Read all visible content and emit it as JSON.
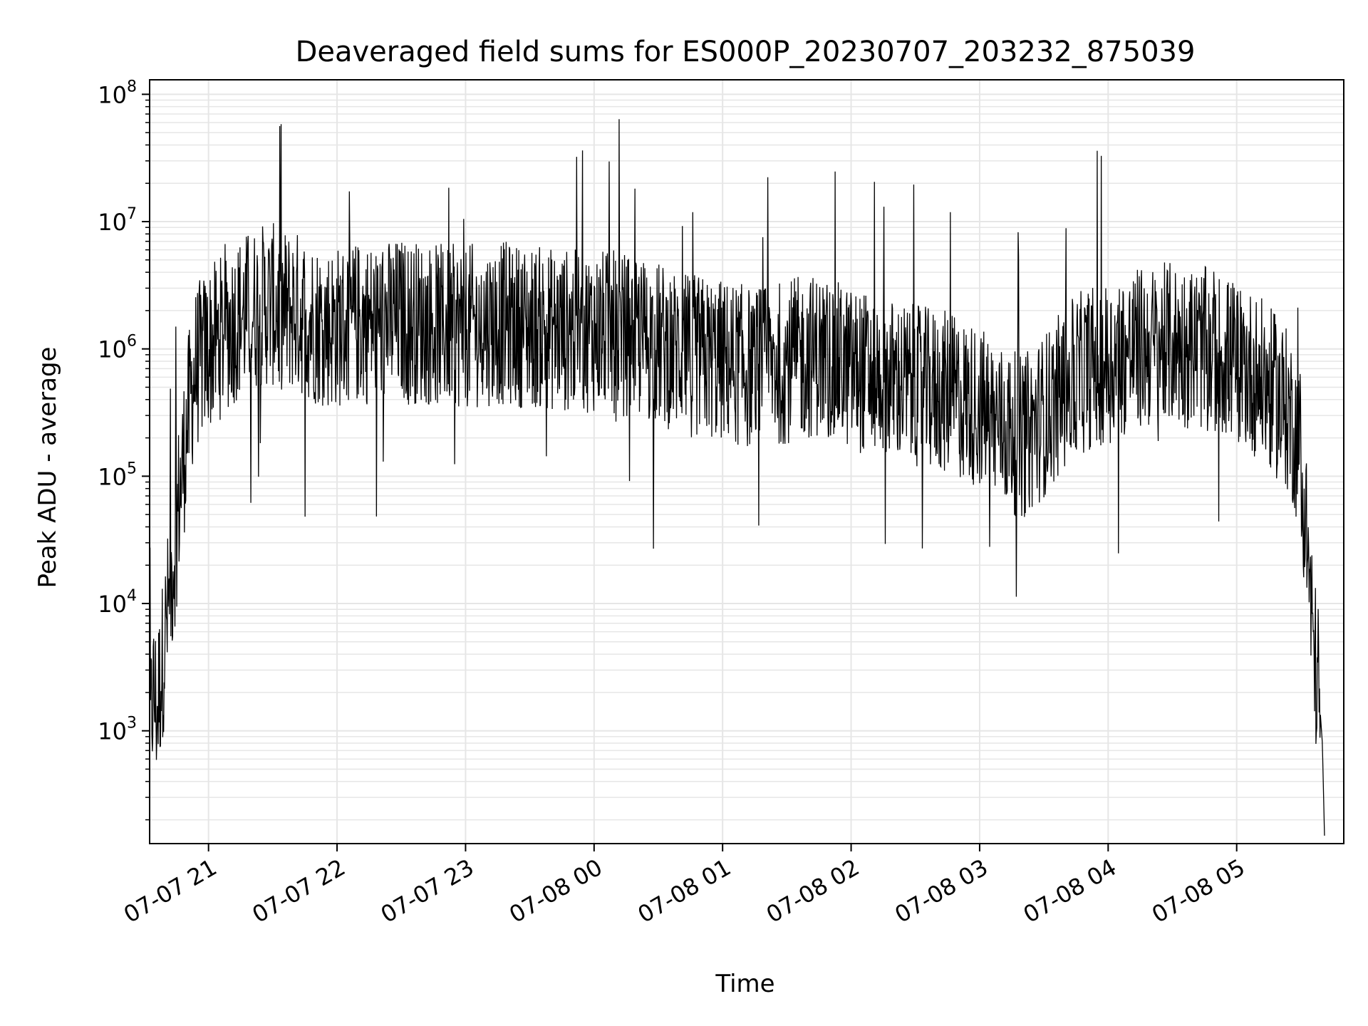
{
  "chart_data": {
    "type": "line",
    "title": "Deaveraged field sums for ES000P_20230707_203232_875039",
    "xlabel": "Time",
    "ylabel": "Peak ADU - average",
    "y_scale": "log",
    "ylim": [
      130,
      130000000
    ],
    "xlim": [
      "07-07 20:32:30",
      "07-08 05:50:00"
    ],
    "grid": true,
    "line_color": "#000000",
    "grid_color": "#e6e6e6",
    "x_ticks": [
      {
        "label": "07-07 21",
        "time": "07-07 21:00"
      },
      {
        "label": "07-07 22",
        "time": "07-07 22:00"
      },
      {
        "label": "07-07 23",
        "time": "07-07 23:00"
      },
      {
        "label": "07-08 00",
        "time": "07-08 00:00"
      },
      {
        "label": "07-08 01",
        "time": "07-08 01:00"
      },
      {
        "label": "07-08 02",
        "time": "07-08 02:00"
      },
      {
        "label": "07-08 03",
        "time": "07-08 03:00"
      },
      {
        "label": "07-08 04",
        "time": "07-08 04:00"
      },
      {
        "label": "07-08 05",
        "time": "07-08 05:00"
      }
    ],
    "y_ticks": [
      {
        "base": "10",
        "exp": "3",
        "value": 1000
      },
      {
        "base": "10",
        "exp": "4",
        "value": 10000
      },
      {
        "base": "10",
        "exp": "5",
        "value": 100000
      },
      {
        "base": "10",
        "exp": "6",
        "value": 1000000
      },
      {
        "base": "10",
        "exp": "7",
        "value": 10000000
      },
      {
        "base": "10",
        "exp": "8",
        "value": 100000000
      }
    ],
    "series": [
      {
        "x": [
          "07-07 20:32:30",
          "07-07 20:34",
          "07-07 20:36",
          "07-07 20:38",
          "07-07 20:40",
          "07-07 20:42",
          "07-07 20:44",
          "07-07 20:46",
          "07-07 20:48",
          "07-07 20:50",
          "07-07 20:52",
          "07-07 20:54",
          "07-07 20:56",
          "07-07 20:58",
          "07-07 21:00",
          "07-07 21:05",
          "07-07 21:10",
          "07-07 21:15",
          "07-07 21:20",
          "07-07 21:25",
          "07-07 21:30",
          "07-07 21:35",
          "07-07 21:40",
          "07-07 21:45",
          "07-07 21:50",
          "07-07 21:55",
          "07-07 22:00",
          "07-07 22:10",
          "07-07 22:20",
          "07-07 22:30",
          "07-07 22:40",
          "07-07 22:50",
          "07-07 23:00",
          "07-07 23:15",
          "07-07 23:30",
          "07-07 23:45",
          "07-08 00:00",
          "07-08 00:15",
          "07-08 00:30",
          "07-08 00:45",
          "07-08 01:00",
          "07-08 01:15",
          "07-08 01:30",
          "07-08 01:45",
          "07-08 02:00",
          "07-08 02:15",
          "07-08 02:30",
          "07-08 02:45",
          "07-08 03:00",
          "07-08 03:10",
          "07-08 03:20",
          "07-08 03:30",
          "07-08 03:40",
          "07-08 03:50",
          "07-08 04:00",
          "07-08 04:15",
          "07-08 04:30",
          "07-08 04:45",
          "07-08 05:00",
          "07-08 05:10",
          "07-08 05:20",
          "07-08 05:25",
          "07-08 05:30",
          "07-08 05:33",
          "07-08 05:36",
          "07-08 05:38",
          "07-08 05:40",
          "07-08 05:41"
        ],
        "y": [
          800,
          2000,
          1500,
          3000,
          6000,
          12000,
          25000,
          60000,
          120000,
          250000,
          450000,
          700000,
          800000,
          900000,
          1000000,
          1200000,
          1500000,
          1800000,
          2000000,
          2200000,
          2200000,
          2000000,
          2000000,
          1800000,
          1600000,
          1500000,
          1500000,
          1600000,
          1600000,
          1700000,
          1600000,
          1500000,
          1500000,
          1600000,
          1500000,
          1400000,
          1400000,
          1300000,
          1100000,
          900000,
          800000,
          700000,
          800000,
          900000,
          700000,
          600000,
          500000,
          450000,
          350000,
          250000,
          200000,
          300000,
          500000,
          700000,
          800000,
          1000000,
          1100000,
          1000000,
          800000,
          600000,
          400000,
          300000,
          150000,
          30000,
          4000,
          2500,
          800,
          150
        ]
      }
    ]
  }
}
